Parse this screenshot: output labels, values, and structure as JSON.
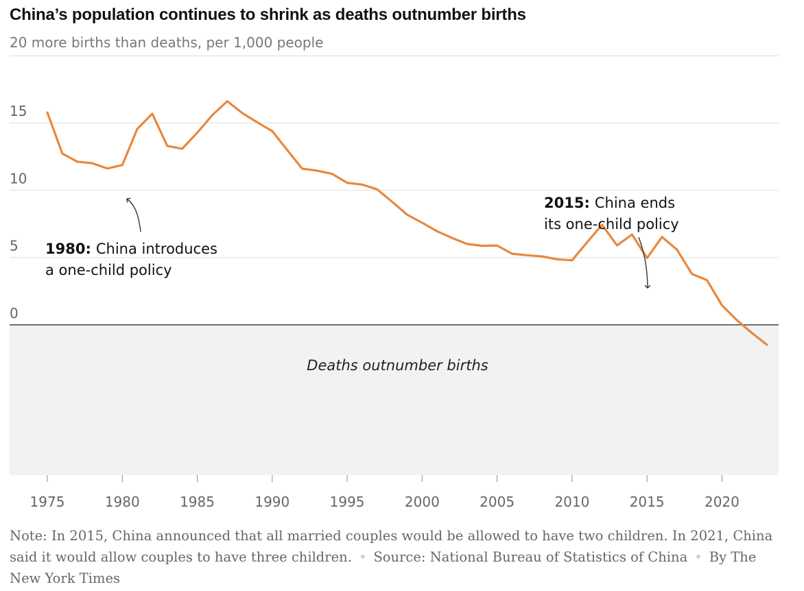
{
  "title": "China’s population continues to shrink as deaths outnumber births",
  "subtitle": "20 more births than deaths, per 1,000 people",
  "region_label": "Deaths outnumber births",
  "annotations": {
    "a1980": {
      "year": "1980:",
      "line1": "China introduces",
      "line2": "a one-child policy"
    },
    "a2015": {
      "year": "2015:",
      "line1": "China ends",
      "line2": "its one-child policy"
    }
  },
  "footer": {
    "note": "Note: In 2015, China announced that all married couples would be allowed to have two children. In 2021, China said it would allow couples to have three children.",
    "source": "Source: National Bureau of Statistics of China",
    "byline": "By The New York Times",
    "separator": "•"
  },
  "colors": {
    "line": "#e8873d",
    "shade": "#f2f2f2",
    "grid": "#dddddd",
    "zero": "#333333"
  },
  "chart_data": {
    "type": "line",
    "title": "China’s population continues to shrink as deaths outnumber births",
    "subtitle": "20 more births than deaths, per 1,000 people",
    "xlim": [
      1975,
      2023
    ],
    "ylim": [
      -5,
      20
    ],
    "x_ticks": [
      1975,
      1980,
      1985,
      1990,
      1995,
      2000,
      2005,
      2010,
      2015,
      2020
    ],
    "y_ticks": [
      0,
      5,
      10,
      15
    ],
    "grid": "horizontal",
    "shaded_region": {
      "from": -5,
      "to": 0,
      "label": "Deaths outnumber births"
    },
    "series": [
      {
        "x": [
          1975,
          1976,
          1977,
          1978,
          1979,
          1980,
          1981,
          1982,
          1983,
          1984,
          1985,
          1986,
          1987,
          1988,
          1989,
          1990,
          1991,
          1992,
          1993,
          1994,
          1995,
          1996,
          1997,
          1998,
          1999,
          2000,
          2001,
          2002,
          2003,
          2004,
          2005,
          2006,
          2007,
          2008,
          2009,
          2010,
          2011,
          2012,
          2013,
          2014,
          2015,
          2016,
          2017,
          2018,
          2019,
          2020,
          2021,
          2022,
          2023
        ],
        "values": [
          15.77,
          12.72,
          12.12,
          12.0,
          11.61,
          11.87,
          14.55,
          15.68,
          13.29,
          13.08,
          14.26,
          15.57,
          16.61,
          15.73,
          15.04,
          14.39,
          12.98,
          11.6,
          11.45,
          11.21,
          10.55,
          10.42,
          10.06,
          9.14,
          8.18,
          7.58,
          6.95,
          6.45,
          6.01,
          5.87,
          5.89,
          5.28,
          5.17,
          5.08,
          4.87,
          4.79,
          6.13,
          7.43,
          5.9,
          6.71,
          4.96,
          6.53,
          5.58,
          3.78,
          3.32,
          1.45,
          0.34,
          -0.6,
          -1.48
        ]
      }
    ]
  }
}
